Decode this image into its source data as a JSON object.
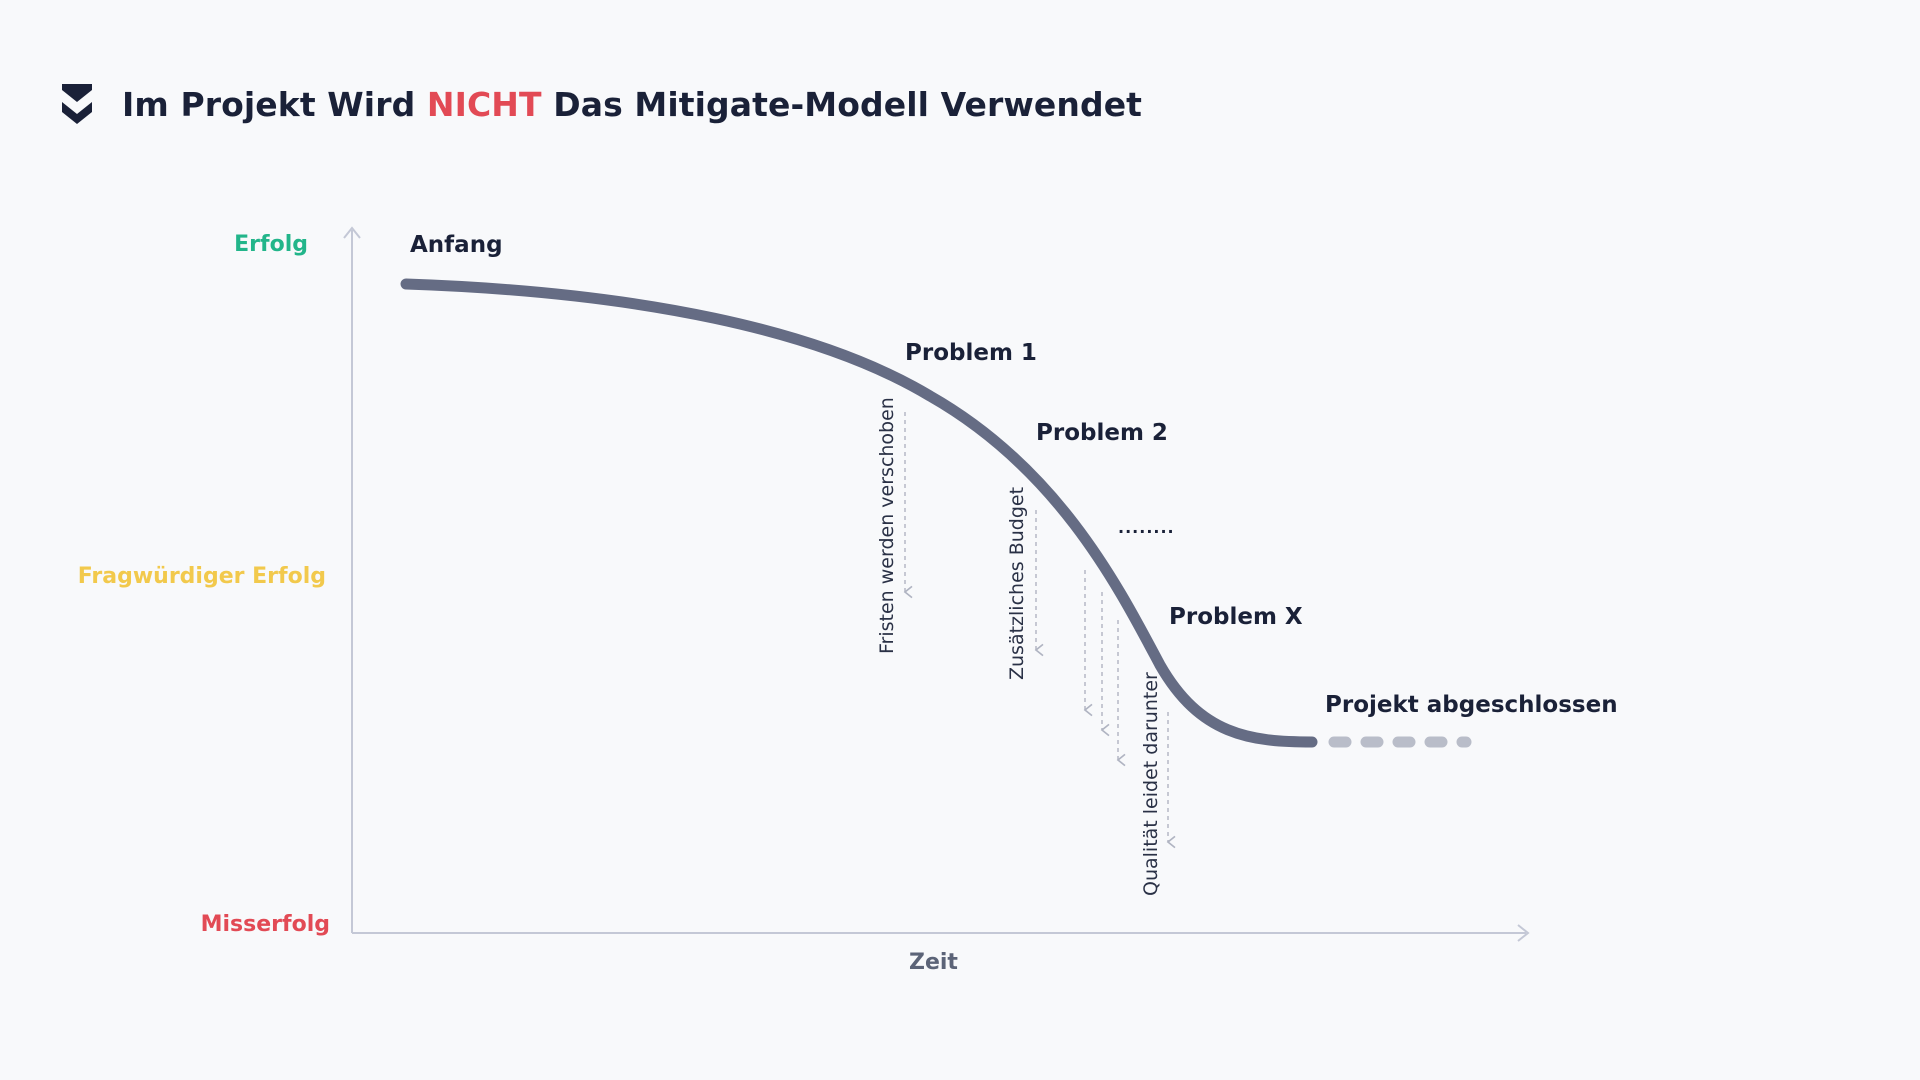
{
  "header": {
    "title_before": "Im Projekt Wird ",
    "title_accent": "NICHT",
    "title_after": " Das Mitigate-Modell Verwendet"
  },
  "axes": {
    "y_top": "Erfolg",
    "y_middle": "Fragwürdiger Erfolg",
    "y_bottom": "Misserfolg",
    "x": "Zeit"
  },
  "points": {
    "start": "Anfang",
    "problem1": "Problem 1",
    "problem2": "Problem 2",
    "ellipsis": "........",
    "problemx": "Problem X",
    "end": "Projekt abgeschlossen"
  },
  "effects": {
    "effect1": "Fristen werden verschoben",
    "effect2": "Zusätzliches Budget",
    "effect3": "Qualität leidet darunter"
  },
  "colors": {
    "success": "#22b58a",
    "questionable": "#f2c94c",
    "failure": "#e24a55",
    "curve": "#656c84",
    "curve_tail": "#b9bdc9",
    "axis": "#c4c8d6",
    "text": "#1a2138"
  }
}
